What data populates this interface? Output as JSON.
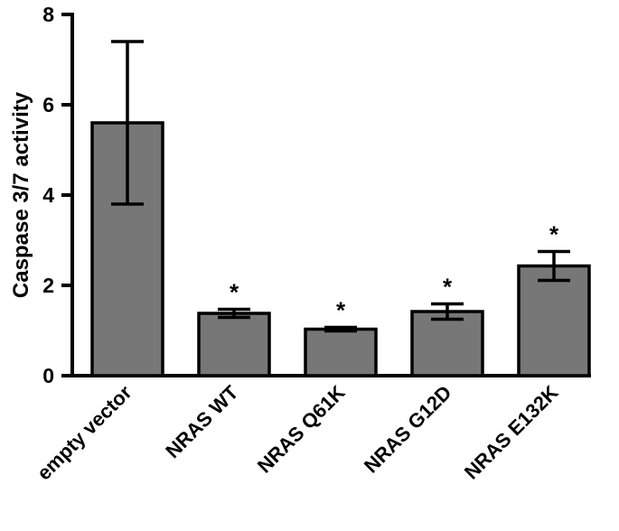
{
  "chart_data": {
    "type": "bar",
    "title": "",
    "xlabel": "",
    "ylabel": "Caspase 3/7 activity",
    "ylim": [
      0,
      8
    ],
    "yticks": [
      0,
      2,
      4,
      6,
      8
    ],
    "categories": [
      "empty vector",
      "NRAS WT",
      "NRAS Q61K",
      "NRAS G12D",
      "NRAS E132K"
    ],
    "values": [
      5.6,
      1.38,
      1.03,
      1.42,
      2.43
    ],
    "error": [
      1.8,
      0.09,
      0.04,
      0.17,
      0.32
    ],
    "significance": [
      "",
      "*",
      "*",
      "*",
      "*"
    ],
    "bar_color": "#777777",
    "edge_color": "#000000"
  }
}
